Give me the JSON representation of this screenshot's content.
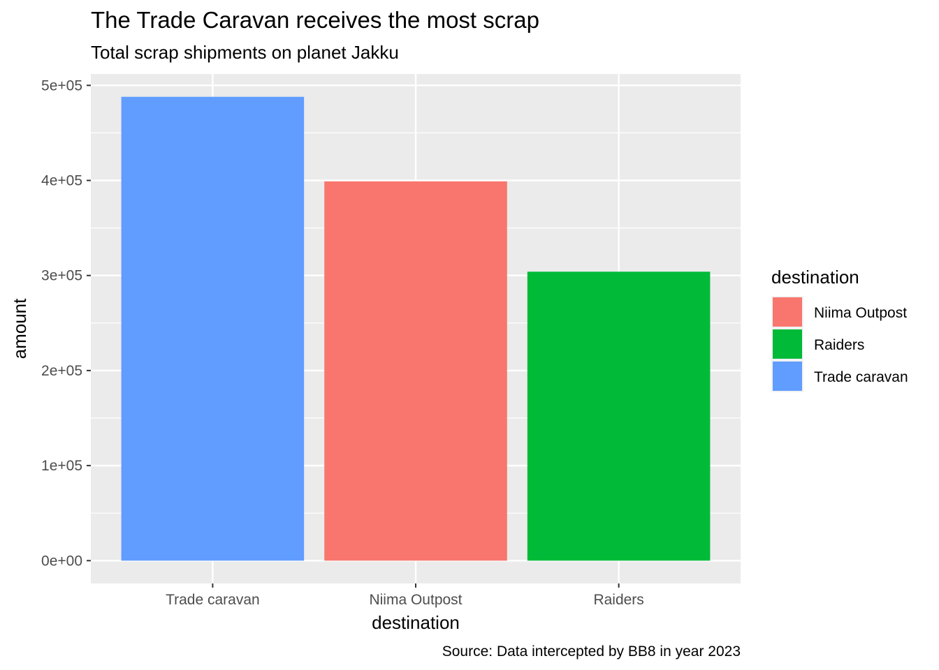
{
  "chart_data": {
    "type": "bar",
    "title": "The Trade Caravan receives the most scrap",
    "subtitle": "Total scrap shipments on planet Jakku",
    "caption": "Source: Data intercepted by BB8 in year 2023",
    "xlabel": "destination",
    "ylabel": "amount",
    "categories": [
      "Trade caravan",
      "Niima Outpost",
      "Raiders"
    ],
    "values": [
      488000,
      399000,
      304000
    ],
    "colors": [
      "#619CFF",
      "#F8766D",
      "#00BA38"
    ],
    "ylim": [
      -24000,
      512000
    ],
    "yticks": [
      0,
      100000,
      200000,
      300000,
      400000,
      500000
    ],
    "ytick_labels": [
      "0e+00",
      "1e+05",
      "2e+05",
      "3e+05",
      "4e+05",
      "5e+05"
    ],
    "grid": true,
    "legend": {
      "title": "destination",
      "placement": "right",
      "items": [
        {
          "label": "Niima Outpost",
          "color": "#F8766D"
        },
        {
          "label": "Raiders",
          "color": "#00BA38"
        },
        {
          "label": "Trade caravan",
          "color": "#619CFF"
        }
      ]
    }
  }
}
